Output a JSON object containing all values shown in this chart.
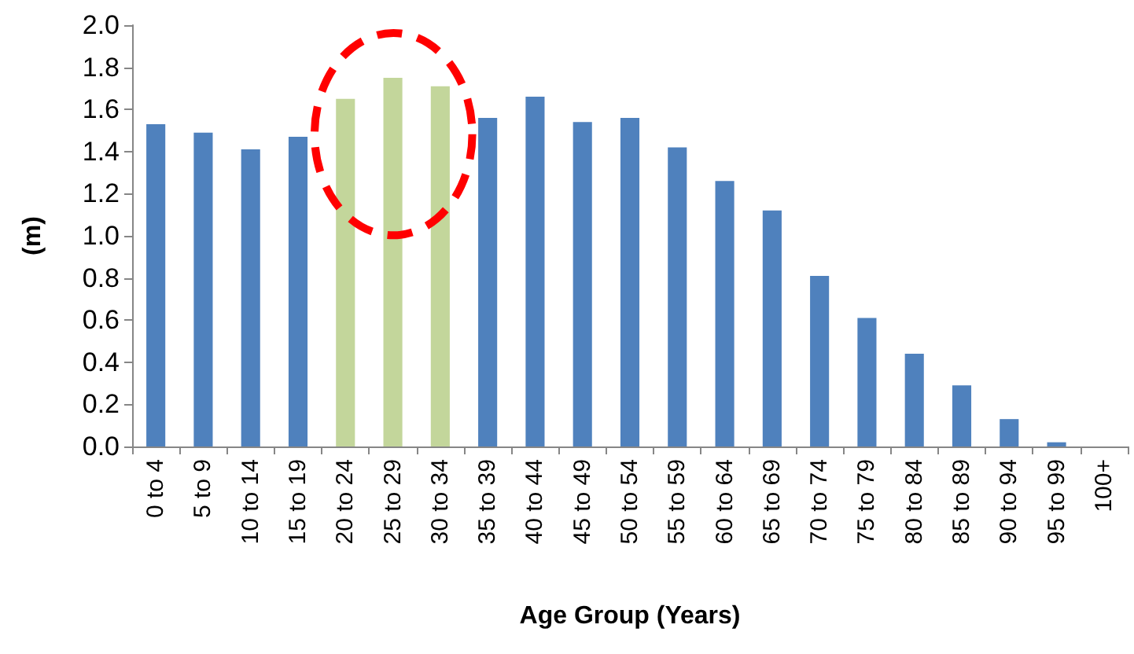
{
  "chart_data": {
    "type": "bar",
    "ylabel": "(m)",
    "xlabel": "Age Group (Years)",
    "categories": [
      "0 to 4",
      "5 to 9",
      "10 to 14",
      "15 to 19",
      "20 to 24",
      "25 to 29",
      "30 to 34",
      "35 to 39",
      "40 to 44",
      "45 to 49",
      "50 to 54",
      "55 to 59",
      "60 to 64",
      "65 to 69",
      "70 to 74",
      "75 to 79",
      "80 to 84",
      "85 to 89",
      "90 to 94",
      "95 to 99",
      "100+"
    ],
    "values": [
      1.53,
      1.49,
      1.41,
      1.47,
      1.65,
      1.75,
      1.71,
      1.56,
      1.66,
      1.54,
      1.56,
      1.42,
      1.26,
      1.12,
      0.81,
      0.61,
      0.44,
      0.29,
      0.13,
      0.02,
      0
    ],
    "colors": [
      "#4f81bd",
      "#4f81bd",
      "#4f81bd",
      "#4f81bd",
      "#c3d69b",
      "#c3d69b",
      "#c3d69b",
      "#4f81bd",
      "#4f81bd",
      "#4f81bd",
      "#4f81bd",
      "#4f81bd",
      "#4f81bd",
      "#4f81bd",
      "#4f81bd",
      "#4f81bd",
      "#4f81bd",
      "#4f81bd",
      "#4f81bd",
      "#4f81bd",
      "#4f81bd"
    ],
    "ylim": [
      0,
      2
    ],
    "yticks": [
      {
        "value": 0,
        "label": "0.0"
      },
      0.2,
      0.4,
      0.6,
      0.8,
      {
        "value": 1,
        "label": "1.0"
      },
      1.2,
      1.4,
      1.6,
      1.8,
      {
        "value": 2,
        "label": "2.0"
      }
    ],
    "grid": false
  }
}
